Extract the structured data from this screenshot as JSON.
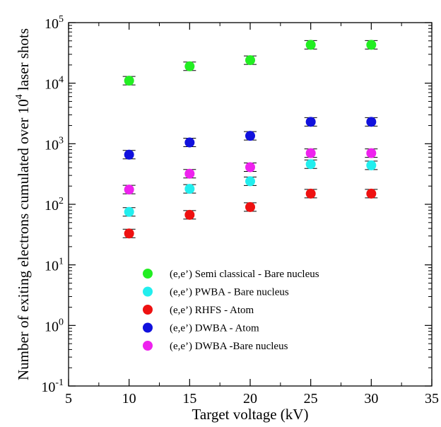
{
  "chart_data": {
    "type": "scatter",
    "xlabel": "Target voltage (kV)",
    "ylabel_parts": {
      "pre": "Number of exiting electrons cumulated over 10",
      "exp": "4",
      "post": " laser shots"
    },
    "xlim": [
      5,
      35
    ],
    "ylim": [
      0.1,
      100000
    ],
    "yscale": "log",
    "x_ticks": [
      5,
      10,
      15,
      20,
      25,
      30,
      35
    ],
    "y_ticks": [
      {
        "base": "10",
        "exp": "-1"
      },
      {
        "base": "10",
        "exp": "0"
      },
      {
        "base": "10",
        "exp": "1"
      },
      {
        "base": "10",
        "exp": "2"
      },
      {
        "base": "10",
        "exp": "3"
      },
      {
        "base": "10",
        "exp": "4"
      },
      {
        "base": "10",
        "exp": "5"
      }
    ],
    "legend_position": "bottom-center",
    "grid": false,
    "x": [
      10,
      15,
      20,
      25,
      30
    ],
    "series": [
      {
        "name": "(e,e’) Semi classical - Bare nucleus",
        "color": "#22ee22",
        "values": [
          11000,
          19000,
          24000,
          43000,
          43000
        ]
      },
      {
        "name": "(e,e’) PWBA - Bare nucleus",
        "color": "#22eeee",
        "values": [
          75,
          180,
          240,
          460,
          440
        ]
      },
      {
        "name": "(e,e’) RHFS - Atom",
        "color": "#ee1111",
        "values": [
          33,
          67,
          90,
          150,
          150
        ]
      },
      {
        "name": "(e,e’) DWBA - Atom",
        "color": "#1111dd",
        "values": [
          660,
          1050,
          1350,
          2300,
          2300
        ]
      },
      {
        "name": "(e,e’) DWBA -Bare nucleus",
        "color": "#ee22ee",
        "values": [
          175,
          320,
          410,
          700,
          700
        ]
      }
    ]
  }
}
